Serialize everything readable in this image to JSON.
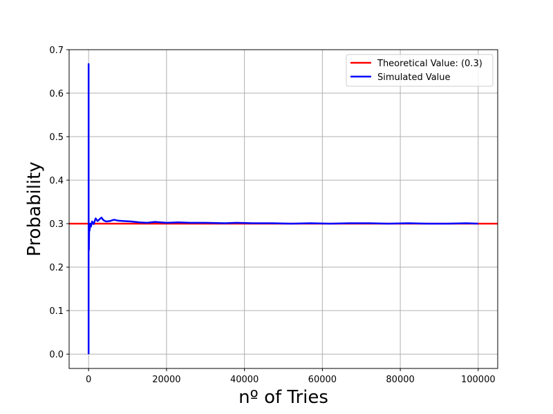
{
  "chart_data": {
    "type": "line",
    "title": "",
    "xlabel": "nº of Tries",
    "ylabel": "Probability",
    "xlim": [
      -5000,
      105000
    ],
    "ylim": [
      -0.033,
      0.7
    ],
    "x_ticks": [
      0,
      20000,
      40000,
      60000,
      80000,
      100000
    ],
    "x_tick_labels": [
      "0",
      "20000",
      "40000",
      "60000",
      "80000",
      "100000"
    ],
    "y_ticks": [
      0.0,
      0.1,
      0.2,
      0.3,
      0.4,
      0.5,
      0.6,
      0.7
    ],
    "y_tick_labels": [
      "0.0",
      "0.1",
      "0.2",
      "0.3",
      "0.4",
      "0.5",
      "0.6",
      "0.7"
    ],
    "grid": true,
    "legend_position": "top-right",
    "series": [
      {
        "name": "Theoretical Value: (0.3)",
        "color": "#ff0000",
        "kind": "hline",
        "y": 0.3
      },
      {
        "name": "Simulated Value",
        "color": "#0000ff",
        "kind": "line",
        "x": [
          0,
          3,
          5,
          10,
          20,
          40,
          80,
          150,
          250,
          400,
          600,
          900,
          1300,
          1800,
          2300,
          2800,
          3300,
          3800,
          4500,
          5500,
          6500,
          7500,
          9000,
          11000,
          13000,
          15000,
          17000,
          18500,
          20000,
          23000,
          26000,
          30000,
          35000,
          38000,
          42000,
          47000,
          52000,
          57000,
          62000,
          67000,
          72000,
          77000,
          82000,
          87000,
          92000,
          97000,
          100000
        ],
        "y": [
          0.0,
          0.667,
          0.6,
          0.3,
          0.25,
          0.275,
          0.24,
          0.293,
          0.284,
          0.3,
          0.293,
          0.305,
          0.299,
          0.312,
          0.306,
          0.31,
          0.314,
          0.308,
          0.305,
          0.306,
          0.309,
          0.307,
          0.306,
          0.305,
          0.303,
          0.302,
          0.304,
          0.303,
          0.302,
          0.303,
          0.302,
          0.302,
          0.301,
          0.302,
          0.301,
          0.301,
          0.3,
          0.301,
          0.3,
          0.301,
          0.301,
          0.3,
          0.301,
          0.3,
          0.3,
          0.301,
          0.3
        ]
      }
    ]
  }
}
